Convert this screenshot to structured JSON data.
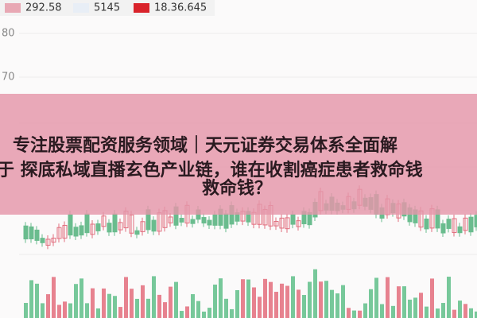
{
  "header": {
    "price": "292.58",
    "volume": "5145",
    "amount": "18.36.645"
  },
  "axis_labels": [
    "80",
    "70"
  ],
  "banner": {
    "lines": [
      "专注股票配资服务领域｜天元证券交易体系全面解",
      "于 探底私域直播玄色产业链，谁在收割癌症患者救命钱",
      "救命钱？"
    ]
  }
}
